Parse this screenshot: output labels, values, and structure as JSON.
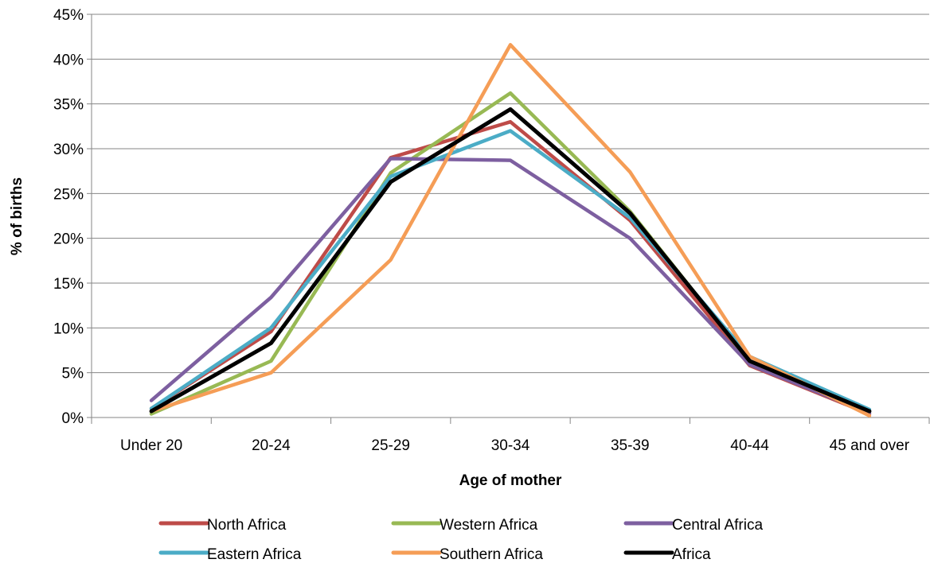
{
  "chart_data": {
    "type": "line",
    "title": "",
    "xlabel": "Age of mother",
    "ylabel": "% of births",
    "categories": [
      "Under 20",
      "20-24",
      "25-29",
      "30-34",
      "35-39",
      "40-44",
      "45 and over"
    ],
    "ylim": [
      0,
      45
    ],
    "yticks": [
      "0%",
      "5%",
      "10%",
      "15%",
      "20%",
      "25%",
      "30%",
      "35%",
      "40%",
      "45%"
    ],
    "grid": true,
    "legend_position": "bottom",
    "series": [
      {
        "name": "North Africa",
        "color": "#be4b48",
        "values": [
          1.0,
          9.6,
          29.0,
          33.0,
          22.0,
          5.8,
          0.4
        ]
      },
      {
        "name": "Western Africa",
        "color": "#98b954",
        "values": [
          0.4,
          6.3,
          27.3,
          36.2,
          23.0,
          6.2,
          0.6
        ]
      },
      {
        "name": "Central Africa",
        "color": "#7d5fa0",
        "values": [
          1.9,
          13.4,
          28.9,
          28.7,
          20.0,
          5.9,
          0.5
        ]
      },
      {
        "name": "Eastern Africa",
        "color": "#4bacc6",
        "values": [
          1.0,
          10.0,
          26.9,
          32.0,
          22.3,
          6.8,
          0.9
        ]
      },
      {
        "name": "Southern Africa",
        "color": "#f59d56",
        "values": [
          0.7,
          5.0,
          17.6,
          41.6,
          27.4,
          6.8,
          0.2
        ]
      },
      {
        "name": "Africa",
        "color": "#000000",
        "values": [
          0.7,
          8.3,
          26.3,
          34.4,
          22.8,
          6.3,
          0.7
        ]
      }
    ]
  }
}
